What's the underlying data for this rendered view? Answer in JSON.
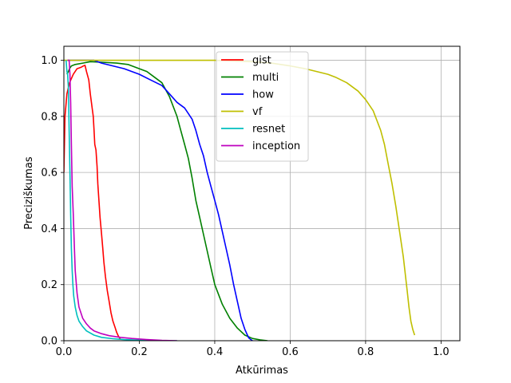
{
  "chart_data": {
    "type": "line",
    "title": "",
    "xlabel": "Atkūrimas",
    "ylabel": "Preciziškumas",
    "xlim": [
      0,
      1.05
    ],
    "ylim": [
      0,
      1.05
    ],
    "xticks": [
      "0.0",
      "0.2",
      "0.4",
      "0.6",
      "0.8",
      "1.0"
    ],
    "yticks": [
      "0.0",
      "0.2",
      "0.4",
      "0.6",
      "0.8",
      "1.0"
    ],
    "grid": true,
    "legend_position": "upper-center",
    "series": [
      {
        "name": "gist",
        "color": "#ff0000",
        "x": [
          0.0,
          0.003,
          0.008,
          0.015,
          0.025,
          0.035,
          0.045,
          0.052,
          0.056,
          0.06,
          0.066,
          0.07,
          0.075,
          0.078,
          0.08,
          0.082,
          0.085,
          0.088,
          0.09,
          0.093,
          0.096,
          0.1,
          0.103,
          0.106,
          0.11,
          0.115,
          0.12,
          0.125,
          0.13,
          0.135,
          0.14,
          0.145,
          0.15
        ],
        "y": [
          0.6,
          0.8,
          0.88,
          0.92,
          0.95,
          0.97,
          0.975,
          0.98,
          0.982,
          0.96,
          0.93,
          0.88,
          0.83,
          0.8,
          0.75,
          0.7,
          0.68,
          0.62,
          0.56,
          0.5,
          0.44,
          0.38,
          0.33,
          0.28,
          0.23,
          0.18,
          0.14,
          0.1,
          0.07,
          0.05,
          0.03,
          0.015,
          0.005
        ]
      },
      {
        "name": "multi",
        "color": "#008000",
        "x": [
          0.008,
          0.012,
          0.015,
          0.02,
          0.03,
          0.05,
          0.07,
          0.1,
          0.14,
          0.17,
          0.2,
          0.22,
          0.24,
          0.26,
          0.28,
          0.3,
          0.31,
          0.32,
          0.33,
          0.34,
          0.35,
          0.36,
          0.37,
          0.38,
          0.39,
          0.4,
          0.42,
          0.44,
          0.46,
          0.48,
          0.5,
          0.52,
          0.54
        ],
        "y": [
          0.95,
          0.96,
          0.97,
          0.98,
          0.985,
          0.99,
          0.995,
          0.993,
          0.99,
          0.985,
          0.97,
          0.96,
          0.94,
          0.92,
          0.87,
          0.8,
          0.75,
          0.7,
          0.65,
          0.58,
          0.5,
          0.44,
          0.38,
          0.32,
          0.26,
          0.2,
          0.13,
          0.08,
          0.045,
          0.02,
          0.008,
          0.003,
          0.0
        ]
      },
      {
        "name": "how",
        "color": "#0000ff",
        "x": [
          0.01,
          0.02,
          0.05,
          0.08,
          0.1,
          0.13,
          0.16,
          0.2,
          0.23,
          0.26,
          0.28,
          0.3,
          0.32,
          0.33,
          0.34,
          0.35,
          0.36,
          0.37,
          0.38,
          0.39,
          0.4,
          0.41,
          0.42,
          0.43,
          0.44,
          0.45,
          0.46,
          0.47,
          0.48,
          0.49,
          0.5
        ],
        "y": [
          1.0,
          1.0,
          1.0,
          1.0,
          0.99,
          0.98,
          0.97,
          0.95,
          0.93,
          0.91,
          0.88,
          0.85,
          0.83,
          0.81,
          0.79,
          0.75,
          0.7,
          0.66,
          0.6,
          0.55,
          0.5,
          0.45,
          0.39,
          0.33,
          0.27,
          0.2,
          0.14,
          0.08,
          0.04,
          0.01,
          0.0
        ]
      },
      {
        "name": "vf",
        "color": "#bfbf00",
        "x": [
          0.0,
          0.2,
          0.4,
          0.5,
          0.55,
          0.6,
          0.64,
          0.67,
          0.7,
          0.72,
          0.75,
          0.78,
          0.8,
          0.82,
          0.84,
          0.85,
          0.86,
          0.87,
          0.88,
          0.89,
          0.9,
          0.905,
          0.91,
          0.915,
          0.92,
          0.925,
          0.93
        ],
        "y": [
          1.0,
          1.0,
          1.0,
          0.995,
          0.99,
          0.98,
          0.97,
          0.96,
          0.95,
          0.94,
          0.92,
          0.89,
          0.86,
          0.82,
          0.75,
          0.7,
          0.63,
          0.56,
          0.48,
          0.39,
          0.3,
          0.24,
          0.18,
          0.12,
          0.07,
          0.04,
          0.02
        ]
      },
      {
        "name": "resnet",
        "color": "#00bfbf",
        "x": [
          0.006,
          0.008,
          0.01,
          0.012,
          0.014,
          0.016,
          0.018,
          0.02,
          0.022,
          0.024,
          0.026,
          0.03,
          0.035,
          0.04,
          0.05,
          0.06,
          0.08,
          0.1,
          0.13,
          0.16,
          0.2,
          0.24,
          0.27,
          0.3
        ],
        "y": [
          1.0,
          0.96,
          0.95,
          0.9,
          0.75,
          0.6,
          0.45,
          0.33,
          0.25,
          0.2,
          0.16,
          0.12,
          0.09,
          0.07,
          0.05,
          0.035,
          0.02,
          0.012,
          0.007,
          0.004,
          0.002,
          0.001,
          0.0,
          0.0
        ]
      },
      {
        "name": "inception",
        "color": "#bf00bf",
        "x": [
          0.01,
          0.014,
          0.016,
          0.018,
          0.02,
          0.022,
          0.025,
          0.028,
          0.03,
          0.035,
          0.04,
          0.05,
          0.06,
          0.07,
          0.08,
          0.09,
          0.1,
          0.12,
          0.15,
          0.18,
          0.22,
          0.26,
          0.3
        ],
        "y": [
          1.0,
          1.0,
          0.95,
          0.85,
          0.7,
          0.55,
          0.45,
          0.33,
          0.25,
          0.17,
          0.12,
          0.08,
          0.06,
          0.045,
          0.035,
          0.03,
          0.025,
          0.018,
          0.012,
          0.008,
          0.004,
          0.001,
          0.0
        ]
      }
    ]
  }
}
